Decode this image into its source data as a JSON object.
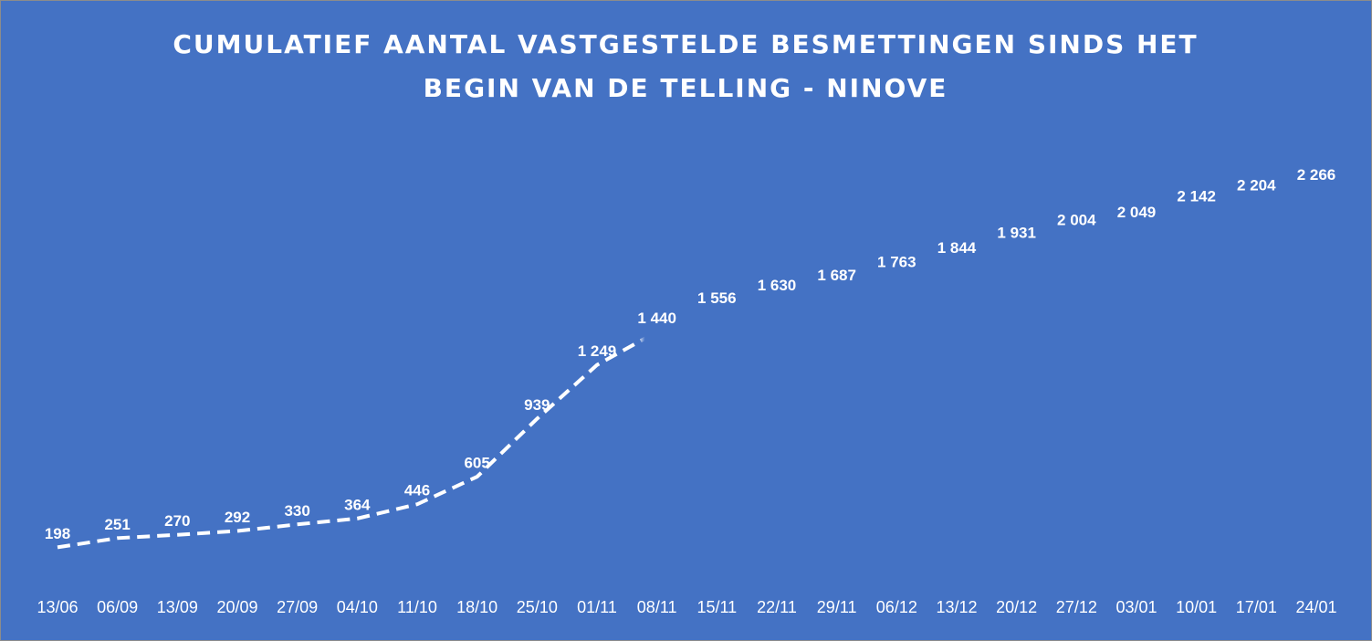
{
  "chart_data": {
    "type": "line",
    "title": "CUMULATIEF AANTAL VASTGESTELDE BESMETTINGEN SINDS HET BEGIN VAN DE TELLING - NINOVE",
    "categories": [
      "13/06",
      "06/09",
      "13/09",
      "20/09",
      "27/09",
      "04/10",
      "11/10",
      "18/10",
      "25/10",
      "01/11",
      "08/11",
      "15/11",
      "22/11",
      "29/11",
      "06/12",
      "13/12",
      "20/12",
      "27/12",
      "03/01",
      "10/01",
      "17/01",
      "24/01"
    ],
    "values": [
      198,
      251,
      270,
      292,
      330,
      364,
      446,
      605,
      939,
      1249,
      1440,
      1556,
      1630,
      1687,
      1763,
      1844,
      1931,
      2004,
      2049,
      2142,
      2204,
      2266
    ],
    "value_labels": [
      "198",
      "251",
      "270",
      "292",
      "330",
      "364",
      "446",
      "605",
      "939",
      "1 249",
      "1 440",
      "1 556",
      "1 630",
      "1 687",
      "1 763",
      "1 844",
      "1 931",
      "2 004",
      "2 049",
      "2 142",
      "2 204",
      "2 266"
    ],
    "color": "#ffffff",
    "ylim": [
      0,
      2400
    ]
  }
}
